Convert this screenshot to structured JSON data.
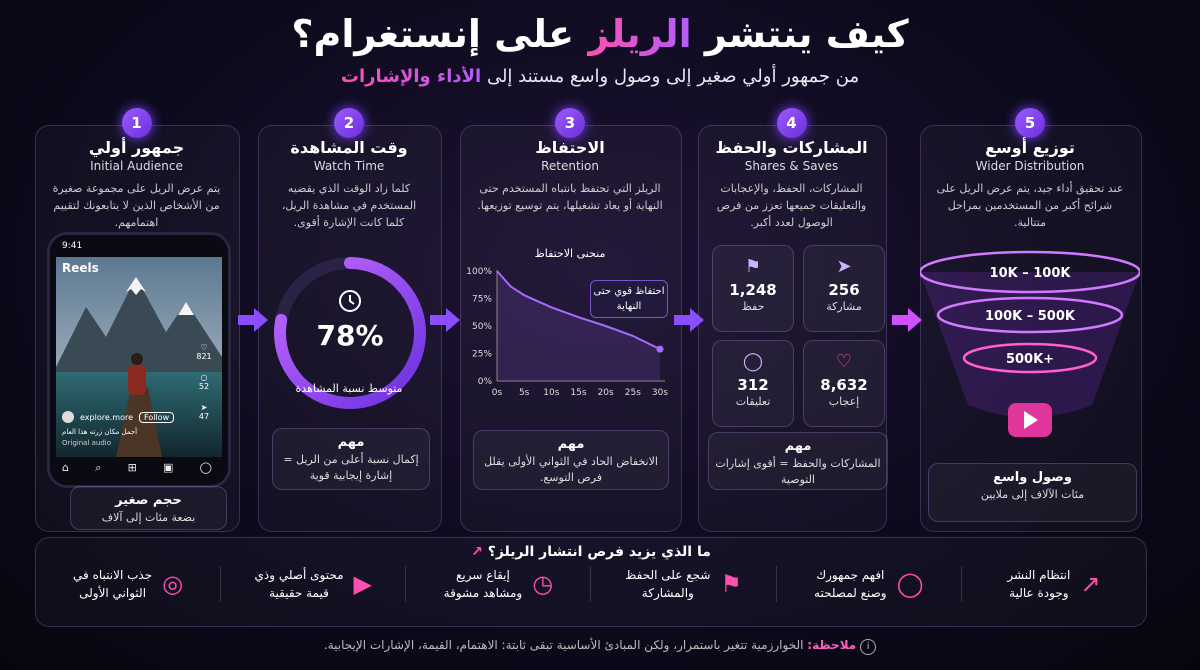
{
  "header": {
    "title_start": "كيف ينتشر",
    "title_highlight": "الريلز",
    "title_end": "على إنستغرام؟",
    "subtitle_start": "من جمهور أولي صغير إلى وصول واسع مستند إلى",
    "subtitle_highlight": "الأداء والإشارات"
  },
  "steps": [
    {
      "number": 1,
      "title": "جمهور أولي",
      "subtitle": "Initial Audience",
      "description": "يتم عرض الريل على مجموعة صغيرة من الأشخاص الذين لا يتابعونك لتقييم اهتمامهم.",
      "phone": {
        "time": "9:41",
        "header": "Reels",
        "likes": "821",
        "comments": "52",
        "shares": "47",
        "username": "explore.more",
        "follow": "Follow",
        "caption": "أجمل مكان زرته هذا العام",
        "audio": "Original audio"
      },
      "footer_title": "حجم صغير",
      "footer_text": "بضعة مئات إلى آلاف"
    },
    {
      "number": 2,
      "title": "وقت المشاهدة",
      "subtitle": "Watch Time",
      "description": "كلما زاد الوقت الذي يقضيه المستخدم في مشاهدة الريل، كلما كانت الإشارة أقوى.",
      "gauge": {
        "value": 78,
        "label": "78%"
      },
      "gauge_caption": "متوسط نسبة المشاهدة",
      "note_title": "مهم",
      "note_text": "إكمال نسبة أعلى من الريل = إشارة إيجابية قوية"
    },
    {
      "number": 3,
      "title": "الاحتفاظ",
      "subtitle": "Retention",
      "description": "الريلز التي تحتفظ بانتباه المستخدم حتى النهاية أو يعاد تشغيلها، يتم توسيع توزيعها.",
      "chart": {
        "type": "line",
        "title": "منحنى الاحتفاظ",
        "x": [
          0,
          2.5,
          5,
          10,
          15,
          20,
          25,
          30
        ],
        "values": [
          100,
          86,
          78,
          67,
          58,
          50,
          41,
          29
        ],
        "xlim": [
          0,
          30
        ],
        "ylim": [
          0,
          100
        ],
        "xticks": [
          {
            "value": 0,
            "label": "0s"
          },
          {
            "value": 5,
            "label": "5s"
          },
          {
            "value": 10,
            "label": "10s"
          },
          {
            "value": 15,
            "label": "15s"
          },
          {
            "value": 20,
            "label": "20s"
          },
          {
            "value": 25,
            "label": "25s"
          },
          {
            "value": 30,
            "label": "30s"
          }
        ],
        "yticks": [
          {
            "value": 0,
            "label": "0%"
          },
          {
            "value": 25,
            "label": "25%"
          },
          {
            "value": 50,
            "label": "50%"
          },
          {
            "value": 75,
            "label": "75%"
          },
          {
            "value": 100,
            "label": "100%"
          }
        ],
        "annotation": "احتفاظ قوي حتى النهاية",
        "color": "#a56bff"
      },
      "note_title": "مهم",
      "note_text": "الانخفاض الحاد في الثواني الأولى يقلل فرص التوسع."
    },
    {
      "number": 4,
      "title": "المشاركات والحفظ",
      "subtitle": "Shares & Saves",
      "description": "المشاركات، الحفظ، والإعجابات والتعليقات جميعها تعزز من فرص الوصول لعدد أكبر.",
      "metrics": [
        {
          "value": "256",
          "label": "مشاركة"
        },
        {
          "value": "1,248",
          "label": "حفظ"
        },
        {
          "value": "8,632",
          "label": "إعجاب"
        },
        {
          "value": "312",
          "label": "تعليقات"
        }
      ],
      "note_title": "مهم",
      "note_text": "المشاركات والحفظ = أقوى إشارات التوصية"
    },
    {
      "number": 5,
      "title": "توزيع أوسع",
      "subtitle": "Wider Distribution",
      "description": "عند تحقيق أداء جيد، يتم عرض الريل على شرائح أكبر من المستخدمين بمراحل متتالية.",
      "funnel": [
        "10K – 100K",
        "100K – 500K",
        "500K+"
      ],
      "footer_title": "وصول واسع",
      "footer_text": "مئات الآلاف إلى ملايين"
    }
  ],
  "tips": {
    "title": "ما الذي يزيد فرص انتشار الريلز؟",
    "items": [
      {
        "line1": "انتظام النشر",
        "line2": "وجودة عالية"
      },
      {
        "line1": "افهم جمهورك",
        "line2": "وصنع لمصلحته"
      },
      {
        "line1": "شجع على الحفظ",
        "line2": "والمشاركة"
      },
      {
        "line1": "إيقاع سريع",
        "line2": "ومشاهد مشوقة"
      },
      {
        "line1": "محتوى أصلي وذي",
        "line2": "قيمة حقيقية"
      },
      {
        "line1": "جذب الانتباه في",
        "line2": "الثواني الأولى"
      }
    ]
  },
  "note": {
    "label": "ملاحظة:",
    "text": "الخوارزمية تتغير باستمرار، ولكن المبادئ الأساسية تبقى ثابتة: الاهتمام، القيمة، الإشارات الإيجابية."
  }
}
